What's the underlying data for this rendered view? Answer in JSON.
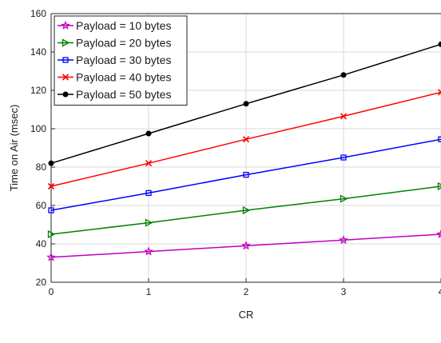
{
  "chart_data": {
    "type": "line",
    "title": "",
    "xlabel": "CR",
    "ylabel": "Time on Air (msec)",
    "x": [
      0,
      1,
      2,
      3,
      4
    ],
    "xlim": [
      0,
      4
    ],
    "ylim": [
      20,
      160
    ],
    "xticks": [
      "0",
      "1",
      "2",
      "3",
      "4"
    ],
    "yticks": [
      "20",
      "40",
      "60",
      "80",
      "100",
      "120",
      "140",
      "160"
    ],
    "grid": true,
    "legend_position": "top-left",
    "series": [
      {
        "name": "Payload = 10 bytes",
        "values": [
          33,
          36,
          39,
          42,
          45
        ],
        "color": "#bf00bf",
        "marker": "star"
      },
      {
        "name": "Payload = 20 bytes",
        "values": [
          45,
          51,
          57.5,
          63.5,
          70
        ],
        "color": "#008000",
        "marker": "triangle-right"
      },
      {
        "name": "Payload = 30 bytes",
        "values": [
          57.5,
          66.5,
          76,
          85,
          94.5
        ],
        "color": "#0000ff",
        "marker": "square"
      },
      {
        "name": "Payload = 40 bytes",
        "values": [
          70,
          82,
          94.5,
          106.5,
          119
        ],
        "color": "#ff0000",
        "marker": "x"
      },
      {
        "name": "Payload = 50 bytes",
        "values": [
          82,
          97.5,
          113,
          128,
          144
        ],
        "color": "#000000",
        "marker": "dot"
      }
    ]
  }
}
